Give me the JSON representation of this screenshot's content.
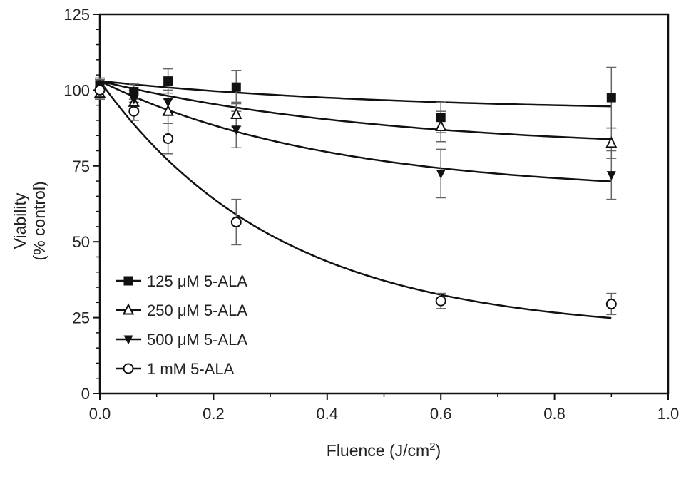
{
  "chart_data": {
    "type": "scatter",
    "title": "",
    "xlabel": "Fluence (J/cm",
    "xlabel_sup": "2",
    "xlabel_end": ")",
    "ylabel_line1": "Viability",
    "ylabel_line2": "(% control)",
    "xlim": [
      0,
      1.0
    ],
    "ylim": [
      0,
      125
    ],
    "xticks": [
      "0.0",
      "0.2",
      "0.4",
      "0.6",
      "0.8",
      "1.0"
    ],
    "yticks": [
      "0",
      "25",
      "50",
      "75",
      "100",
      "125"
    ],
    "grid": false,
    "legend_position": "bottom-left",
    "x": [
      0,
      0.06,
      0.12,
      0.24,
      0.6,
      0.9
    ],
    "series": [
      {
        "name": "125 μM 5-ALA",
        "marker": "filled-square",
        "values": [
          101.5,
          99.5,
          103,
          101,
          91,
          97.5
        ],
        "errors": [
          2,
          2.5,
          4,
          5.5,
          5,
          10
        ],
        "fit": {
          "model": "plateau + amplitude*exp(-k*x)",
          "plateau": 93,
          "amplitude": 10,
          "k": 2
        }
      },
      {
        "name": "250 μM 5-ALA",
        "marker": "open-triangle-up",
        "values": [
          99,
          96,
          93,
          92,
          88,
          82.5
        ],
        "errors": [
          2,
          3,
          4,
          4,
          5,
          5
        ],
        "fit": {
          "model": "plateau + amplitude*exp(-k*x)",
          "plateau": 80,
          "amplitude": 23,
          "k": 2
        }
      },
      {
        "name": "500 μM 5-ALA",
        "marker": "filled-triangle-down",
        "values": [
          102,
          97,
          96,
          87,
          72.5,
          72
        ],
        "errors": [
          2,
          3,
          4,
          6,
          8,
          8
        ],
        "fit": {
          "model": "plateau + amplitude*exp(-k*x)",
          "plateau": 66,
          "amplitude": 37,
          "k": 2.5
        }
      },
      {
        "name": "1 mM 5-ALA",
        "marker": "open-circle",
        "values": [
          100,
          93,
          84,
          56.5,
          30.5,
          29.5
        ],
        "errors": [
          3,
          3,
          5,
          7.5,
          2.5,
          3.5
        ],
        "fit": {
          "model": "plateau + amplitude*exp(-k*x)",
          "plateau": 20,
          "amplitude": 83,
          "k": 3.15
        }
      }
    ]
  },
  "colors": {
    "ink": "#111111",
    "error_bar": "#666666"
  }
}
